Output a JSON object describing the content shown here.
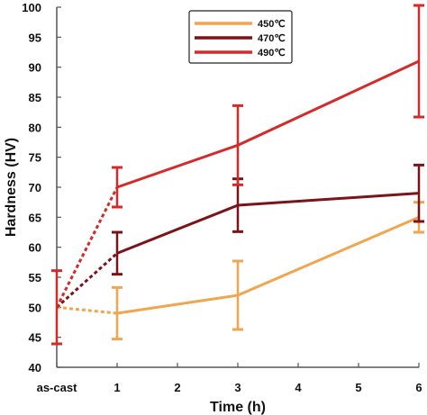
{
  "chart_data": {
    "type": "line",
    "xlabel": "Time  (h)",
    "ylabel": "Hardness (HV)",
    "x_categories": [
      "as-cast",
      "1",
      "2",
      "3",
      "4",
      "5",
      "6"
    ],
    "x_values": [
      0,
      1,
      2,
      3,
      4,
      5,
      6
    ],
    "ylim": [
      40,
      100
    ],
    "yticks": [
      "40",
      "45",
      "50",
      "55",
      "60",
      "65",
      "70",
      "75",
      "80",
      "85",
      "90",
      "95",
      "100"
    ],
    "grid": false,
    "legend_position": "top-center",
    "note": "Segment from as-cast to 1 h is drawn dashed for every series.",
    "series": [
      {
        "name": "450℃",
        "color": "#f0a54e",
        "points": [
          {
            "x": 0,
            "y": 50.0,
            "err": 0
          },
          {
            "x": 1,
            "y": 49.0,
            "err": 4.3
          },
          {
            "x": 3,
            "y": 52.0,
            "err": 5.7
          },
          {
            "x": 6,
            "y": 65.0,
            "err": 2.5
          }
        ]
      },
      {
        "name": "470℃",
        "color": "#7a1418",
        "points": [
          {
            "x": 0,
            "y": 50.0,
            "err": 0
          },
          {
            "x": 1,
            "y": 59.0,
            "err": 3.5
          },
          {
            "x": 3,
            "y": 67.0,
            "err": 4.4
          },
          {
            "x": 6,
            "y": 69.0,
            "err": 4.7
          }
        ]
      },
      {
        "name": "490℃",
        "color": "#d42a2a",
        "points": [
          {
            "x": 0,
            "y": 50.0,
            "err": 6.1
          },
          {
            "x": 1,
            "y": 70.0,
            "err": 3.3
          },
          {
            "x": 3,
            "y": 77.0,
            "err": 6.6
          },
          {
            "x": 6,
            "y": 91.0,
            "err": 9.3
          }
        ]
      }
    ]
  }
}
